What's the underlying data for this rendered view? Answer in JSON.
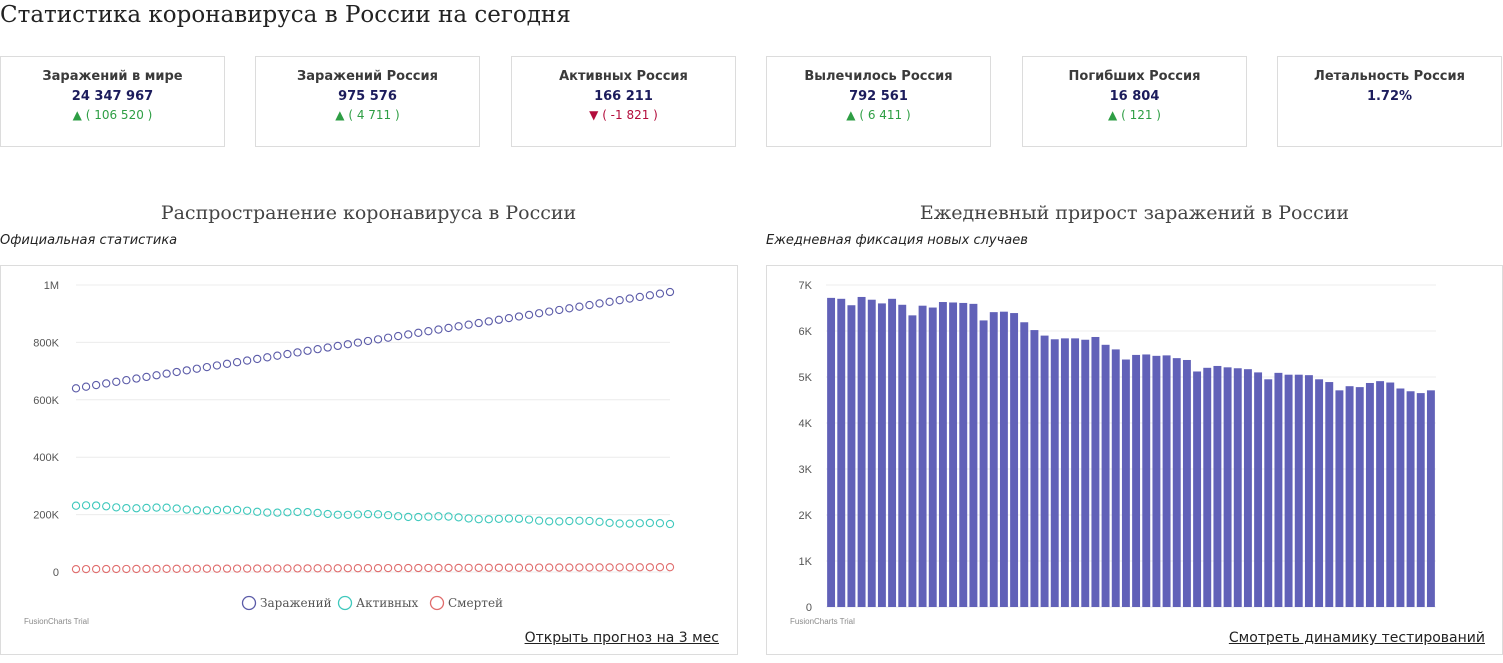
{
  "page": {
    "title": "Статистика коронавируса в России на сегодня"
  },
  "stats": [
    {
      "label": "Заражений в мире",
      "value": "24 347 967",
      "delta": "( 106 520 )",
      "direction": "up"
    },
    {
      "label": "Заражений Россия",
      "value": "975 576",
      "delta": "( 4 711 )",
      "direction": "up"
    },
    {
      "label": "Активных Россия",
      "value": "166 211",
      "delta": "( -1 821 )",
      "direction": "down"
    },
    {
      "label": "Вылечилось Россия",
      "value": "792 561",
      "delta": "( 6 411 )",
      "direction": "up"
    },
    {
      "label": "Погибших Россия",
      "value": "16 804",
      "delta": "( 121 )",
      "direction": "up"
    },
    {
      "label": "Летальность Россия",
      "value": "1.72%",
      "delta": "",
      "direction": ""
    }
  ],
  "arrows": {
    "up": "▲",
    "down": "▼"
  },
  "colors": {
    "up": "#2e9e44",
    "down": "#b30d3c",
    "infected": "#5b5ba8",
    "active": "#3ec8bc",
    "deaths": "#e06c6c",
    "bar": "#6161b8"
  },
  "chart_data": [
    {
      "type": "line",
      "title": "Распространение коронавируса в России",
      "subtitle": "Официальная статистика",
      "ylim": [
        0,
        1000000
      ],
      "yticks": [
        0,
        200000,
        400000,
        600000,
        800000,
        1000000
      ],
      "ytick_labels": [
        "0",
        "200K",
        "400K",
        "600K",
        "800K",
        "1M"
      ],
      "grid": true,
      "legend_position": "bottom",
      "series": [
        {
          "name": "Заражений",
          "start": 640000,
          "end": 975576,
          "points": 60
        },
        {
          "name": "Активных",
          "start": 231000,
          "end": 166211,
          "points": 60
        },
        {
          "name": "Смертей",
          "start": 10000,
          "end": 16804,
          "points": 60
        }
      ],
      "watermark": "FusionCharts Trial",
      "link": "Открыть прогноз на 3 мес"
    },
    {
      "type": "bar",
      "title": "Ежедневный прирост заражений в России",
      "subtitle": "Ежедневная фиксация новых случаев",
      "ylim": [
        0,
        7000
      ],
      "yticks": [
        0,
        1000,
        2000,
        3000,
        4000,
        5000,
        6000,
        7000
      ],
      "ytick_labels": [
        "0",
        "1K",
        "2K",
        "3K",
        "4K",
        "5K",
        "6K",
        "7K"
      ],
      "grid": true,
      "values": [
        6720,
        6700,
        6560,
        6740,
        6680,
        6600,
        6700,
        6570,
        6340,
        6550,
        6510,
        6630,
        6620,
        6610,
        6590,
        6230,
        6410,
        6420,
        6390,
        6190,
        6020,
        5900,
        5820,
        5840,
        5840,
        5810,
        5870,
        5700,
        5600,
        5380,
        5480,
        5490,
        5460,
        5470,
        5410,
        5370,
        5120,
        5200,
        5240,
        5210,
        5190,
        5170,
        5100,
        4950,
        5090,
        5050,
        5050,
        5040,
        4950,
        4890,
        4710,
        4800,
        4780,
        4870,
        4910,
        4880,
        4750,
        4690,
        4650,
        4710
      ],
      "watermark": "FusionCharts Trial",
      "link": "Смотреть динамику тестирований"
    }
  ]
}
